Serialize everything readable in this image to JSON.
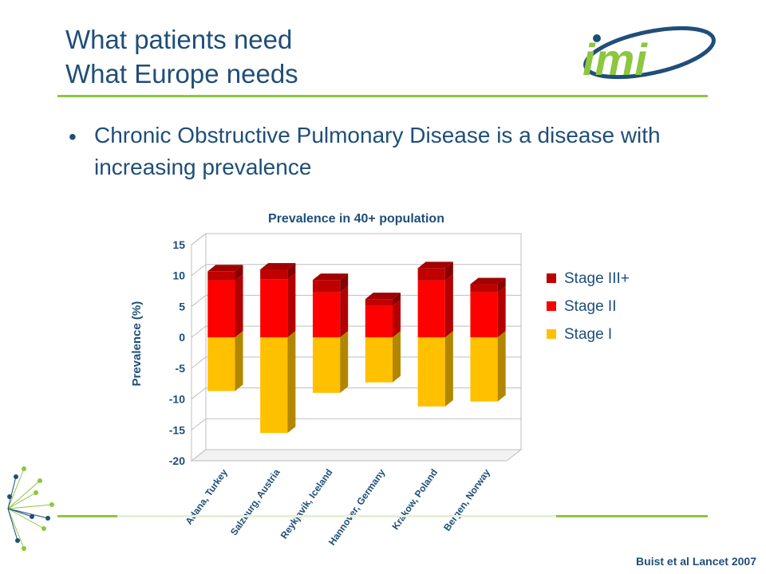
{
  "slide": {
    "title_line1": "What patients need",
    "title_line2": "What Europe needs",
    "bullet_text": "Chronic Obstructive Pulmonary Disease is a disease with increasing prevalence",
    "citation": "Buist et al Lancet 2007",
    "logo_text": "imi"
  },
  "colors": {
    "title": "#1f4e79",
    "accent_green": "#8dc63f",
    "stage_I": "#ffc000",
    "stage_II": "#ff0000",
    "stage_III": "#c00000"
  },
  "chart_data": {
    "type": "bar",
    "title": "Prevalence in 40+ population",
    "ylabel": "Prevalence (%)",
    "xlabel": "",
    "ylim": [
      -20,
      15
    ],
    "yticks": [
      15,
      10,
      5,
      0,
      -5,
      -10,
      -15,
      -20
    ],
    "ytick_labels": [
      "15",
      "10",
      "5",
      "0",
      "-5",
      "-10",
      "-15",
      "-20"
    ],
    "categories": [
      "Adana, Turkey",
      "Salzburg, Austria",
      "Reykjavik, Iceland",
      "Hannover, Germany",
      "Krakow, Poland",
      "Bergen, Norway"
    ],
    "series": [
      {
        "name": "Stage I",
        "values": [
          -8.7,
          -15.5,
          -9.0,
          -7.3,
          -11.2,
          -10.4
        ],
        "color": "#ffc000"
      },
      {
        "name": "Stage II",
        "values": [
          9.2,
          9.4,
          7.3,
          5.1,
          9.2,
          7.3
        ],
        "color": "#ff0000"
      },
      {
        "name": "Stage III+",
        "values": [
          1.5,
          1.6,
          2.0,
          1.1,
          2.0,
          1.3
        ],
        "color": "#c00000"
      }
    ],
    "legend": {
      "placement": "right",
      "order": [
        "Stage III+",
        "Stage II",
        "Stage I"
      ]
    },
    "grid": true
  }
}
